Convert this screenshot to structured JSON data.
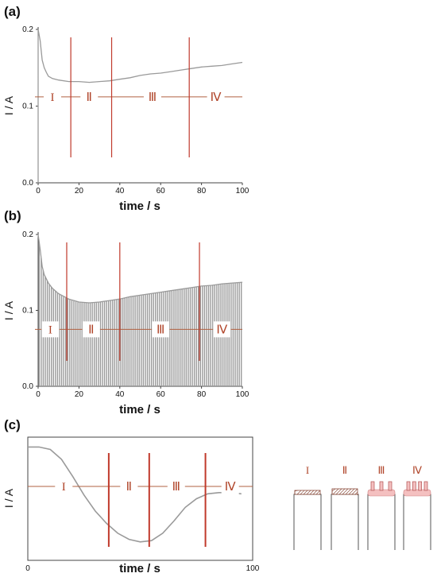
{
  "colors": {
    "curve": "#9a9a9a",
    "stage_line": "#c0392b",
    "region_line": "#b06040",
    "region_text": "#b0452a",
    "axis": "#444444",
    "deposit_fill": "#f4c0c0"
  },
  "chart_data": [
    {
      "type": "line",
      "panel_label": "(a)",
      "xlabel": "time / s",
      "ylabel": "I / A",
      "xlim": [
        0,
        100
      ],
      "ylim": [
        0.0,
        0.2
      ],
      "xticks": [
        "0",
        "20",
        "40",
        "60",
        "80",
        "100"
      ],
      "yticks": [
        "0.0",
        "0.1",
        "0.2"
      ],
      "series": [
        {
          "x": [
            0,
            1,
            2,
            3,
            4,
            5,
            7,
            10,
            15,
            20,
            25,
            30,
            35,
            40,
            45,
            50,
            55,
            60,
            65,
            70,
            75,
            80,
            85,
            90,
            95,
            100
          ],
          "y": [
            0.2,
            0.185,
            0.16,
            0.15,
            0.144,
            0.139,
            0.136,
            0.134,
            0.132,
            0.132,
            0.131,
            0.132,
            0.133,
            0.135,
            0.137,
            0.14,
            0.142,
            0.143,
            0.145,
            0.147,
            0.149,
            0.151,
            0.152,
            0.153,
            0.155,
            0.157
          ]
        }
      ],
      "stage_lines_x": [
        16,
        36,
        74
      ],
      "region_level_y": 0.112,
      "regions": [
        {
          "label": "I",
          "x": 7
        },
        {
          "label": "Ⅱ",
          "x": 25
        },
        {
          "label": "Ⅲ",
          "x": 56
        },
        {
          "label": "Ⅳ",
          "x": 87
        }
      ]
    },
    {
      "type": "line",
      "panel_label": "(b)",
      "xlabel": "time / s",
      "ylabel": "I / A",
      "xlim": [
        0,
        100
      ],
      "ylim": [
        0.0,
        0.2
      ],
      "xticks": [
        "0",
        "20",
        "40",
        "60",
        "80",
        "100"
      ],
      "yticks": [
        "0.0",
        "0.1",
        "0.2"
      ],
      "pulse_count": 100,
      "series": [
        {
          "x": [
            0,
            1,
            2,
            3,
            5,
            7,
            10,
            15,
            20,
            25,
            30,
            35,
            40,
            45,
            50,
            55,
            60,
            65,
            70,
            75,
            80,
            85,
            90,
            95,
            100
          ],
          "y": [
            0.2,
            0.18,
            0.158,
            0.147,
            0.136,
            0.129,
            0.122,
            0.115,
            0.111,
            0.11,
            0.111,
            0.113,
            0.115,
            0.118,
            0.12,
            0.122,
            0.124,
            0.126,
            0.128,
            0.13,
            0.132,
            0.133,
            0.135,
            0.136,
            0.137
          ]
        }
      ],
      "stage_lines_x": [
        14,
        40,
        79
      ],
      "region_level_y": 0.075,
      "regions": [
        {
          "label": "I",
          "x": 6
        },
        {
          "label": "Ⅱ",
          "x": 26
        },
        {
          "label": "Ⅲ",
          "x": 60
        },
        {
          "label": "Ⅳ",
          "x": 90
        }
      ]
    },
    {
      "type": "line",
      "panel_label": "(c)",
      "xlabel": "time / s",
      "ylabel": "I / A",
      "xlim": [
        0,
        100
      ],
      "ylim": [
        0,
        1
      ],
      "xticks": [
        "0",
        "100"
      ],
      "yticks": [],
      "series": [
        {
          "x": [
            0,
            5,
            10,
            15,
            20,
            25,
            30,
            35,
            40,
            45,
            50,
            55,
            60,
            65,
            70,
            75,
            80,
            85,
            90,
            95
          ],
          "y": [
            0.92,
            0.92,
            0.9,
            0.82,
            0.68,
            0.53,
            0.4,
            0.3,
            0.22,
            0.17,
            0.15,
            0.16,
            0.22,
            0.32,
            0.43,
            0.5,
            0.54,
            0.55,
            0.55,
            0.54
          ]
        }
      ],
      "stage_lines_x": [
        36,
        54,
        79
      ],
      "region_level_y": 0.6,
      "regions": [
        {
          "label": "I",
          "x": 16
        },
        {
          "label": "Ⅱ",
          "x": 45
        },
        {
          "label": "Ⅲ",
          "x": 66
        },
        {
          "label": "Ⅳ",
          "x": 90
        }
      ]
    }
  ],
  "schematic": {
    "stages": [
      {
        "label": "I",
        "deposit": "thin"
      },
      {
        "label": "Ⅱ",
        "deposit": "thick"
      },
      {
        "label": "Ⅲ",
        "deposit": "pillars"
      },
      {
        "label": "Ⅳ",
        "deposit": "pillars-dense"
      }
    ]
  }
}
